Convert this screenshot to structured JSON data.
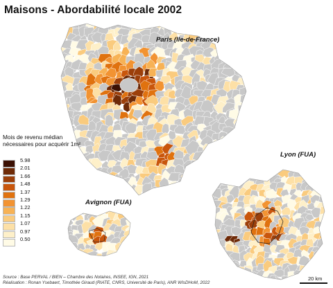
{
  "title": "Maisons - Abordabilité locale 2002",
  "maps": {
    "paris": {
      "label": "Paris (Ile-de-France)"
    },
    "lyon": {
      "label": "Lyon (FUA)"
    },
    "avignon": {
      "label": "Avignon (FUA)"
    }
  },
  "legend": {
    "title": "Mois de revenu médian nécessaires pour acquérir 1m²",
    "breaks": [
      "5.98",
      "2.01",
      "1.66",
      "1.48",
      "1.37",
      "1.29",
      "1.22",
      "1.15",
      "1.07",
      "0.97",
      "0.50"
    ],
    "colors": [
      "#3b1003",
      "#6e2a07",
      "#9c3f0a",
      "#c9560c",
      "#e0720f",
      "#f29332",
      "#f7b255",
      "#facb7e",
      "#fde0a6",
      "#fef0c9",
      "#fffbe6"
    ],
    "no_data_color": "#c8c8c8",
    "border_color": "#ffffff"
  },
  "credits": {
    "source": "Source : Base PERVAL / BIEN – Chambre des Notaires, INSEE, IGN, 2021",
    "realisation": "Réalisation : Ronan Ysebaert, Timothée Giraud (RIATE, CNRS, Université de Paris), ANR WIsDHoM, 2022"
  },
  "scale": {
    "label": "20 km"
  }
}
